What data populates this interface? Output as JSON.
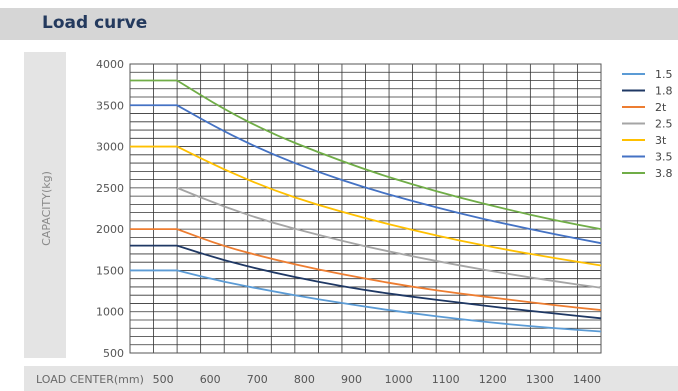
{
  "title": "Load curve",
  "chart_data": {
    "type": "line",
    "title": "Load curve",
    "xlabel": "LOAD CENTER(mm)",
    "ylabel": "CAPACITY(kg)",
    "x": [
      500,
      600,
      700,
      800,
      900,
      1000,
      1100,
      1200,
      1300,
      1400
    ],
    "x_ticks": [
      "500",
      "600",
      "700",
      "800",
      "900",
      "1000",
      "1100",
      "1200",
      "1300",
      "1400"
    ],
    "y_ticks": [
      "500",
      "1000",
      "1500",
      "2000",
      "2500",
      "3000",
      "3500",
      "4000"
    ],
    "xlim": [
      400,
      1400
    ],
    "ylim": [
      500,
      4000
    ],
    "grid": true,
    "legend_position": "right",
    "series": [
      {
        "name": "1.5",
        "color": "#5b9bd5",
        "flat_from": 400,
        "values": [
          1500,
          1360,
          1250,
          1150,
          1060,
          980,
          910,
          850,
          800,
          760
        ]
      },
      {
        "name": "1.8",
        "color": "#1f3864",
        "flat_from": 400,
        "values": [
          1800,
          1620,
          1480,
          1360,
          1260,
          1180,
          1110,
          1040,
          980,
          920
        ]
      },
      {
        "name": "2t",
        "color": "#ed7d31",
        "flat_from": 400,
        "values": [
          2000,
          1790,
          1640,
          1510,
          1400,
          1300,
          1220,
          1150,
          1080,
          1020
        ]
      },
      {
        "name": "2.5",
        "color": "#a5a5a5",
        "flat_from": 500,
        "values": [
          2500,
          2270,
          2080,
          1930,
          1790,
          1670,
          1560,
          1460,
          1370,
          1290
        ]
      },
      {
        "name": "3t",
        "color": "#ffc000",
        "flat_from": 400,
        "values": [
          3000,
          2720,
          2480,
          2290,
          2130,
          1990,
          1860,
          1750,
          1650,
          1560
        ]
      },
      {
        "name": "3.5",
        "color": "#4472c4",
        "flat_from": 400,
        "values": [
          3500,
          3180,
          2910,
          2690,
          2500,
          2340,
          2190,
          2060,
          1940,
          1830
        ]
      },
      {
        "name": "3.8",
        "color": "#70ad47",
        "flat_from": 400,
        "values": [
          3800,
          3450,
          3160,
          2930,
          2720,
          2540,
          2380,
          2240,
          2110,
          2000
        ]
      }
    ]
  }
}
